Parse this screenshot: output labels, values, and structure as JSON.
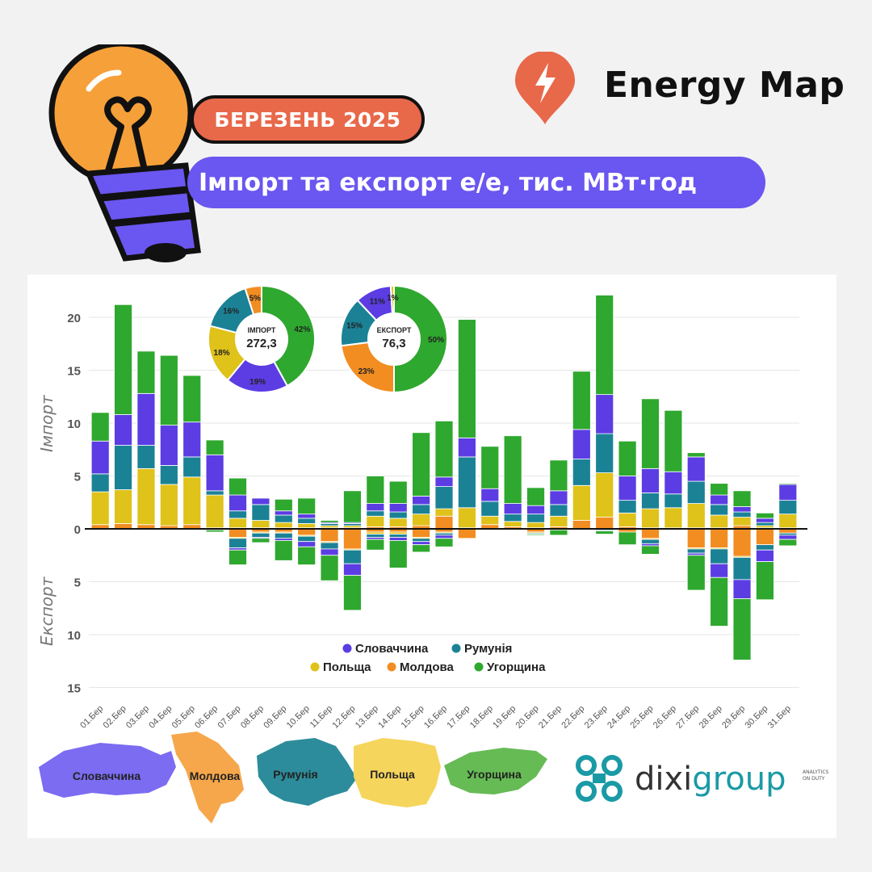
{
  "header": {
    "month_badge": "БЕРЕЗЕНЬ 2025",
    "title": "Імпорт та експорт е/е, тис. МВт·год",
    "brand": "Energy Map"
  },
  "footer": {
    "brand_prefix": "dixi",
    "brand_suffix": "group",
    "tagline_1": "ANALYTICS",
    "tagline_2": "ON DUTY"
  },
  "country_maps": [
    {
      "label": "Словаччина",
      "color": "#7b6cf2"
    },
    {
      "label": "Молдова",
      "color": "#f6a74b"
    },
    {
      "label": "Румунія",
      "color": "#2d8c9b"
    },
    {
      "label": "Польща",
      "color": "#f6d55c"
    },
    {
      "label": "Угорщина",
      "color": "#66bb55"
    }
  ],
  "chart_data": {
    "type": "bar",
    "stacked": true,
    "ylabel_top": "Імпорт",
    "ylabel_bottom": "Експорт",
    "ylim": [
      -15,
      22.5
    ],
    "yticks": [
      {
        "value": 20,
        "label": "20"
      },
      {
        "value": 15,
        "label": "15"
      },
      {
        "value": 10,
        "label": "10"
      },
      {
        "value": 5,
        "label": "5"
      },
      {
        "value": 0,
        "label": "0"
      },
      {
        "value": -5,
        "label": "5"
      },
      {
        "value": -10,
        "label": "10"
      },
      {
        "value": -15,
        "label": "15"
      }
    ],
    "grid": true,
    "legend_position": "bottom-center",
    "categories": [
      "01.Бер",
      "02.Бер",
      "03.Бер",
      "04.Бер",
      "05.Бер",
      "06.Бер",
      "07.Бер",
      "08.Бер",
      "09.Бер",
      "10.Бер",
      "11.Бер",
      "12.Бер",
      "13.Бер",
      "14.Бер",
      "15.Бер",
      "16.Бер",
      "17.Бер",
      "18.Бер",
      "19.Бер",
      "20.Бер",
      "21.Бер",
      "22.Бер",
      "23.Бер",
      "24.Бер",
      "25.Бер",
      "26.Бер",
      "27.Бер",
      "28.Бер",
      "29.Бер",
      "30.Бер",
      "31.Бер"
    ],
    "import_series": [
      {
        "name": "Молдова",
        "color": "#f28d21",
        "values": [
          0.4,
          0.5,
          0.4,
          0.3,
          0.4,
          0.1,
          0.1,
          0.1,
          0.1,
          0.1,
          0.1,
          0.1,
          0.2,
          0.2,
          0.3,
          1.2,
          0.1,
          0.4,
          0.2,
          0.1,
          0.2,
          0.8,
          1.1,
          0.2,
          0.1,
          0.1,
          0.1,
          0.1,
          0.3,
          0.1,
          0.1
        ]
      },
      {
        "name": "Польща",
        "color": "#dfc21a",
        "values": [
          3.1,
          3.2,
          5.3,
          3.9,
          4.5,
          3.1,
          0.9,
          0.7,
          0.5,
          0.4,
          0.2,
          0.2,
          1.0,
          0.8,
          1.1,
          0.7,
          1.9,
          0.8,
          0.5,
          0.5,
          1.0,
          3.3,
          4.2,
          1.3,
          1.8,
          1.9,
          2.3,
          1.2,
          0.8,
          0.2,
          1.3
        ]
      },
      {
        "name": "Румунія",
        "color": "#1b8296",
        "values": [
          1.7,
          4.2,
          2.2,
          1.8,
          1.9,
          0.4,
          0.7,
          1.5,
          0.7,
          0.5,
          0.2,
          0.2,
          0.5,
          0.6,
          0.9,
          2.1,
          4.8,
          1.4,
          0.7,
          0.8,
          1.1,
          2.5,
          3.7,
          1.2,
          1.5,
          1.3,
          2.1,
          1.0,
          0.5,
          0.3,
          1.3
        ]
      },
      {
        "name": "Словаччина",
        "color": "#5b3de3",
        "values": [
          3.1,
          2.9,
          4.9,
          3.8,
          3.3,
          3.4,
          1.5,
          0.6,
          0.4,
          0.4,
          0.1,
          0.1,
          0.7,
          0.8,
          0.8,
          0.9,
          1.8,
          1.2,
          1.0,
          0.8,
          1.3,
          2.8,
          3.7,
          2.3,
          2.3,
          2.1,
          2.3,
          0.9,
          0.5,
          0.4,
          1.5
        ]
      },
      {
        "name": "Угорщина",
        "color": "#2ea82e",
        "values": [
          2.7,
          10.4,
          4.0,
          6.6,
          4.4,
          1.4,
          1.6,
          0.0,
          1.1,
          1.5,
          0.2,
          3.0,
          2.6,
          2.1,
          6.0,
          5.3,
          11.2,
          4.0,
          6.4,
          1.7,
          2.9,
          5.5,
          9.4,
          3.3,
          6.6,
          5.8,
          0.4,
          1.1,
          1.5,
          0.5,
          0.1
        ]
      }
    ],
    "export_series": [
      {
        "name": "Молдова",
        "color": "#f28d21",
        "values": [
          0,
          0,
          0,
          0,
          0,
          0.1,
          0.8,
          0.3,
          0.3,
          0.6,
          1.2,
          1.9,
          0.3,
          0.3,
          0.8,
          0.3,
          0.9,
          0.1,
          0.1,
          0.3,
          0.1,
          0,
          0.1,
          0.3,
          0.9,
          0.1,
          1.8,
          1.8,
          2.6,
          1.5,
          0.4
        ]
      },
      {
        "name": "Польща",
        "color": "#dfc21a",
        "values": [
          0,
          0,
          0,
          0,
          0,
          0,
          0.1,
          0.1,
          0.1,
          0.1,
          0.1,
          0.1,
          0.2,
          0.2,
          0.1,
          0.1,
          0,
          0,
          0,
          0.1,
          0,
          0,
          0,
          0,
          0.1,
          0,
          0.1,
          0.1,
          0.1,
          0,
          0
        ]
      },
      {
        "name": "Румунія",
        "color": "#1b8296",
        "values": [
          0,
          0,
          0,
          0,
          0,
          0,
          0.9,
          0.4,
          0.5,
          0.5,
          0.6,
          1.3,
          0.3,
          0.3,
          0.3,
          0.2,
          0,
          0,
          0,
          0.1,
          0,
          0,
          0.1,
          0,
          0.4,
          0,
          0.4,
          1.4,
          2.1,
          0.5,
          0.2
        ]
      },
      {
        "name": "Словаччина",
        "color": "#5b3de3",
        "values": [
          0,
          0,
          0,
          0,
          0,
          0,
          0.2,
          0.1,
          0.2,
          0.5,
          0.6,
          1.1,
          0.2,
          0.3,
          0.3,
          0.3,
          0,
          0,
          0,
          0,
          0,
          0,
          0,
          0,
          0.2,
          0,
          0.2,
          1.3,
          1.8,
          1.1,
          0.4
        ]
      },
      {
        "name": "Угорщина",
        "color": "#2ea82e",
        "values": [
          0,
          0,
          0,
          0,
          0,
          0.2,
          1.4,
          0.4,
          1.9,
          1.7,
          2.4,
          3.3,
          1.0,
          2.6,
          0.7,
          0.8,
          0,
          0,
          0,
          0.1,
          0.5,
          0,
          0.3,
          1.2,
          0.8,
          0,
          3.3,
          4.6,
          5.8,
          3.6,
          0.6
        ]
      }
    ],
    "legend": [
      {
        "name": "Словаччина",
        "color": "#5b3de3"
      },
      {
        "name": "Румунія",
        "color": "#1b8296"
      },
      {
        "name": "Польща",
        "color": "#dfc21a"
      },
      {
        "name": "Молдова",
        "color": "#f28d21"
      },
      {
        "name": "Угорщина",
        "color": "#2ea82e"
      }
    ],
    "donuts": [
      {
        "center_label": "ІМПОРТ",
        "center_value": "272,3",
        "slices": [
          {
            "name": "Угорщина",
            "value": 42,
            "label": "42%",
            "color": "#2ea82e"
          },
          {
            "name": "Словаччина",
            "value": 19,
            "label": "19%",
            "color": "#5b3de3"
          },
          {
            "name": "Польща",
            "value": 18,
            "label": "18%",
            "color": "#dfc21a"
          },
          {
            "name": "Румунія",
            "value": 16,
            "label": "16%",
            "color": "#1b8296"
          },
          {
            "name": "Молдова",
            "value": 5,
            "label": "5%",
            "color": "#f28d21"
          }
        ]
      },
      {
        "center_label": "ЕКСПОРТ",
        "center_value": "76,3",
        "slices": [
          {
            "name": "Угорщина",
            "value": 50,
            "label": "50%",
            "color": "#2ea82e"
          },
          {
            "name": "Молдова",
            "value": 23,
            "label": "23%",
            "color": "#f28d21"
          },
          {
            "name": "Румунія",
            "value": 15,
            "label": "15%",
            "color": "#1b8296"
          },
          {
            "name": "Словаччина",
            "value": 11,
            "label": "11%",
            "color": "#5b3de3"
          },
          {
            "name": "Польща",
            "value": 1,
            "label": "1%",
            "color": "#dfc21a"
          }
        ]
      }
    ]
  }
}
